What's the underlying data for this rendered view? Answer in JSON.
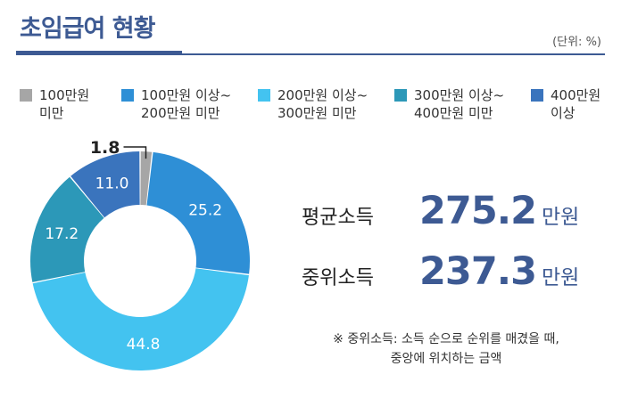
{
  "header": {
    "title": "초임급여 현황",
    "unit": "(단위: %)"
  },
  "legend": [
    {
      "label": "100만원\n미만",
      "color": "#a6a6a6"
    },
    {
      "label": "100만원 이상~\n200만원 미만",
      "color": "#2e8fd6"
    },
    {
      "label": "200만원 이상~\n300만원 미만",
      "color": "#43c3f0"
    },
    {
      "label": "300만원 이상~\n400만원 미만",
      "color": "#2c98b8"
    },
    {
      "label": "400만원\n이상",
      "color": "#3a74bd"
    }
  ],
  "chart_data": {
    "type": "pie",
    "style": "donut",
    "unit": "%",
    "categories": [
      "100만원 미만",
      "100만원 이상~200만원 미만",
      "200만원 이상~300만원 미만",
      "300만원 이상~400만원 미만",
      "400만원 이상"
    ],
    "values": [
      1.8,
      25.2,
      44.8,
      17.2,
      11.0
    ],
    "labels": [
      "1.8",
      "25.2",
      "44.8",
      "17.2",
      "11.0"
    ],
    "colors": [
      "#a6a6a6",
      "#2e8fd6",
      "#43c3f0",
      "#2c98b8",
      "#3a74bd"
    ],
    "legend_position": "top"
  },
  "stats": {
    "mean_label": "평균소득",
    "mean_value": "275.2",
    "median_label": "중위소득",
    "median_value": "237.3",
    "unit": "만원"
  },
  "note": {
    "line1": "※ 중위소득: 소득 순으로 순위를 매겼을 때,",
    "line2": "중앙에 위치하는 금액"
  }
}
